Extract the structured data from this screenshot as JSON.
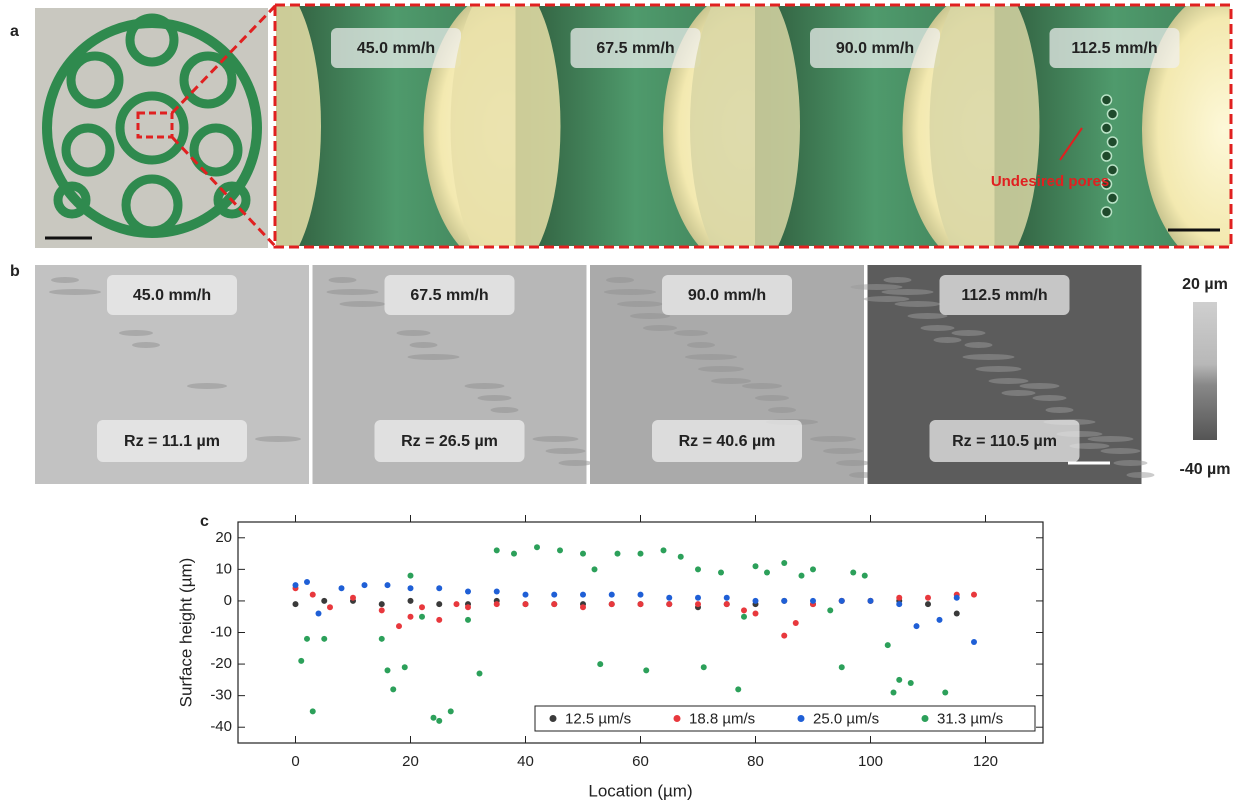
{
  "panel_a": {
    "letter": "a",
    "labels": [
      "45.0 mm/h",
      "67.5 mm/h",
      "90.0 mm/h",
      "112.5 mm/h"
    ],
    "annotation": "Undesired pores"
  },
  "panel_b": {
    "letter": "b",
    "labels": [
      "45.0 mm/h",
      "67.5 mm/h",
      "90.0 mm/h",
      "112.5 mm/h"
    ],
    "roughness": [
      "Rz = 11.1 µm",
      "Rz = 26.5 µm",
      "Rz = 40.6 µm",
      "Rz = 110.5 µm"
    ],
    "colorbar_max": "20 µm",
    "colorbar_min": "-40 µm"
  },
  "chart_data": {
    "type": "scatter",
    "panel_label": "c",
    "x_label": "Location (µm)",
    "y_label": "Surface height (µm)",
    "xlim": [
      -10,
      130
    ],
    "ylim": [
      -45,
      25
    ],
    "xticks": [
      0,
      20,
      40,
      60,
      80,
      100,
      120
    ],
    "yticks": [
      -40,
      -30,
      -20,
      -10,
      0,
      10,
      20
    ],
    "legend": "lower right",
    "series": [
      {
        "name": "12.5 µm/s",
        "color": "#3a3a3a",
        "x": [
          0,
          5,
          10,
          15,
          20,
          25,
          30,
          35,
          40,
          45,
          50,
          55,
          60,
          65,
          70,
          75,
          80,
          85,
          90,
          95,
          100,
          105,
          110,
          115
        ],
        "values": [
          -1,
          0,
          0,
          -1,
          0,
          -1,
          -1,
          0,
          -1,
          -1,
          -1,
          -1,
          -1,
          -1,
          -2,
          -1,
          -1,
          0,
          -1,
          0,
          0,
          0,
          -1,
          -4
        ]
      },
      {
        "name": "18.8 µm/s",
        "color": "#e8383d",
        "x": [
          0,
          3,
          6,
          10,
          15,
          18,
          20,
          22,
          25,
          28,
          30,
          35,
          40,
          45,
          50,
          55,
          60,
          65,
          70,
          75,
          78,
          80,
          85,
          87,
          90,
          95,
          100,
          105,
          110,
          115,
          118
        ],
        "values": [
          4,
          2,
          -2,
          1,
          -3,
          -8,
          -5,
          -2,
          -6,
          -1,
          -2,
          -1,
          -1,
          -1,
          -2,
          -1,
          -1,
          -1,
          -1,
          -1,
          -3,
          -4,
          -11,
          -7,
          -1,
          0,
          0,
          1,
          1,
          2,
          2
        ]
      },
      {
        "name": "25.0 µm/s",
        "color": "#1f5fd6",
        "x": [
          0,
          2,
          4,
          8,
          12,
          16,
          20,
          25,
          30,
          35,
          40,
          45,
          50,
          55,
          60,
          65,
          70,
          75,
          80,
          85,
          90,
          95,
          100,
          105,
          108,
          112,
          115,
          118
        ],
        "values": [
          5,
          6,
          -4,
          4,
          5,
          5,
          4,
          4,
          3,
          3,
          2,
          2,
          2,
          2,
          2,
          1,
          1,
          1,
          0,
          0,
          0,
          0,
          0,
          -1,
          -8,
          -6,
          1,
          -13
        ]
      },
      {
        "name": "31.3 µm/s",
        "color": "#2ca05a",
        "x": [
          1,
          2,
          3,
          5,
          15,
          16,
          17,
          19,
          20,
          22,
          24,
          25,
          27,
          30,
          32,
          35,
          38,
          42,
          46,
          50,
          52,
          53,
          56,
          60,
          61,
          64,
          67,
          70,
          71,
          74,
          77,
          78,
          80,
          82,
          85,
          88,
          90,
          93,
          95,
          97,
          99,
          103,
          104,
          105,
          107,
          113
        ],
        "values": [
          -19,
          -12,
          -35,
          -12,
          -12,
          -22,
          -28,
          -21,
          8,
          -5,
          -37,
          -38,
          -35,
          -6,
          -23,
          16,
          15,
          17,
          16,
          15,
          10,
          -20,
          15,
          15,
          -22,
          16,
          14,
          10,
          -21,
          9,
          -28,
          -5,
          11,
          9,
          12,
          8,
          10,
          -3,
          -21,
          9,
          8,
          -14,
          -29,
          -25,
          -26,
          -29
        ]
      }
    ]
  }
}
